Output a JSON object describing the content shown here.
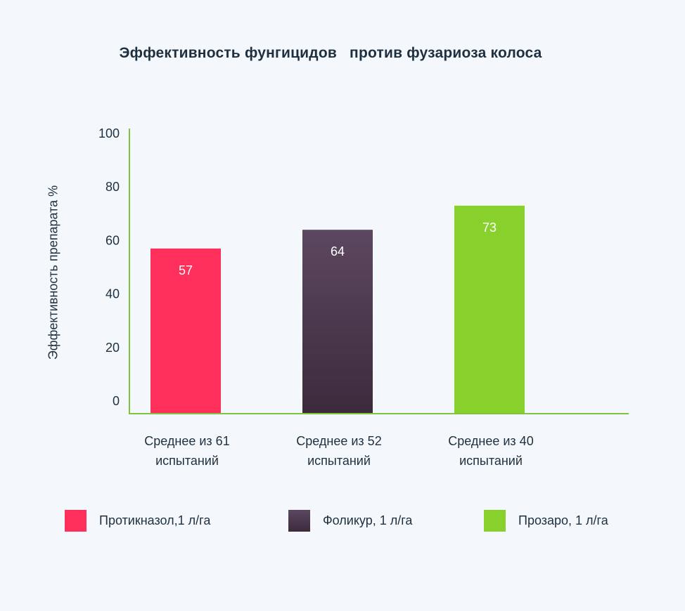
{
  "chart_data": {
    "type": "bar",
    "title": "Эффективность фунгицидов   против фузариоза колоса",
    "ylabel": "Эффективность препарата %",
    "xlabel": "",
    "ylim": [
      0,
      100
    ],
    "yticks": [
      0,
      20,
      40,
      60,
      80,
      100
    ],
    "grid": false,
    "categories": [
      [
        "Среднее из 61",
        "испытаний"
      ],
      [
        "Среднее из 52",
        "испытаний"
      ],
      [
        "Среднее из 40",
        "испытаний"
      ]
    ],
    "values": [
      57,
      64,
      73
    ],
    "bar_value_labels": [
      "57",
      "64",
      "73"
    ],
    "legend_position": "bottom",
    "legend": [
      "Протикназол,1 л/га",
      "Фоликур, 1 л/га",
      "Прозаро, 1 л/га"
    ],
    "colors": [
      "#ff2f5c",
      "#4a3347",
      "#88d12d"
    ],
    "axis_color": "#7cc63c"
  }
}
